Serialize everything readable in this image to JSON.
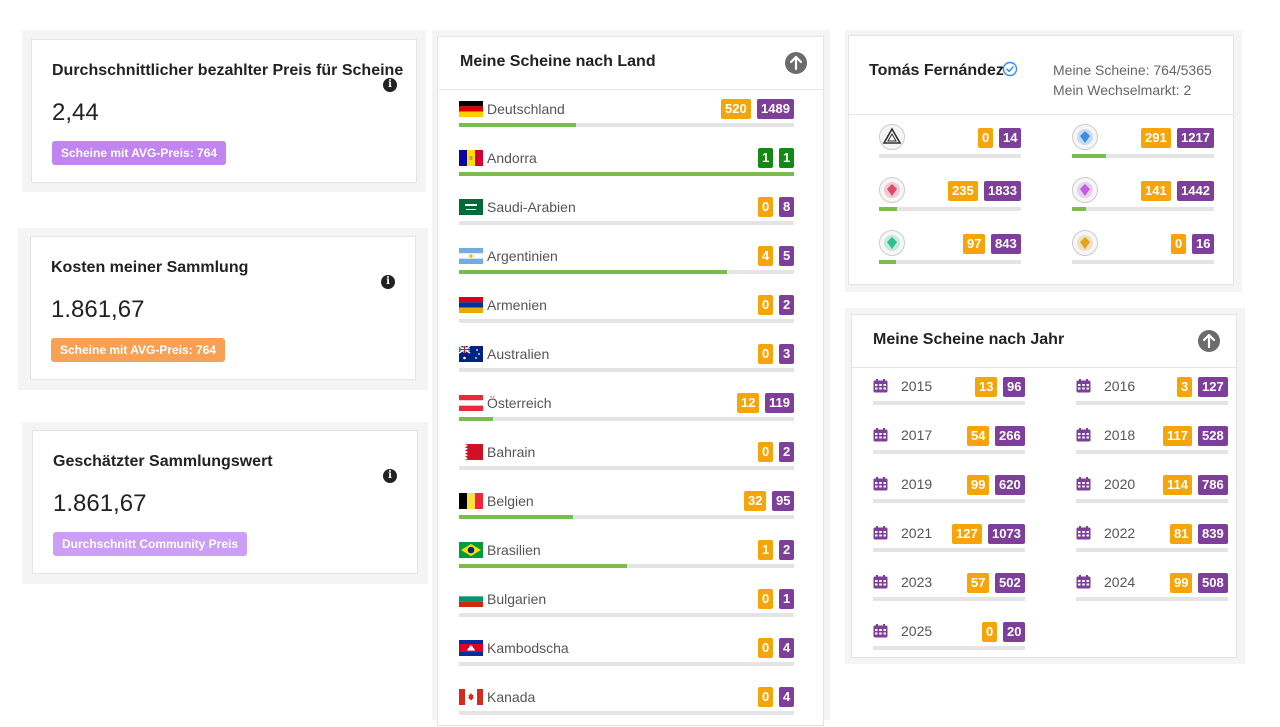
{
  "stats": [
    {
      "title": "Durchschnittlicher bezahlter Preis für Scheine",
      "value": "2,44",
      "badge": "Scheine mit AVG-Preis: 764",
      "badge_color": "#c184f0"
    },
    {
      "title": "Kosten meiner Sammlung",
      "value": "1.861,67",
      "badge": "Scheine mit AVG-Preis: 764",
      "badge_color": "#f8a155"
    },
    {
      "title": "Geschätzter Sammlungswert",
      "value": "1.861,67",
      "badge": "Durchschnitt Community Preis",
      "badge_color": "#cc9ef5"
    }
  ],
  "info_glyph": "i",
  "countries": {
    "title": "Meine Scheine nach Land",
    "items": [
      {
        "name": "Deutschland",
        "flag": "de",
        "owned": "520",
        "total": "1489",
        "progress": 0.35,
        "owned_color": "orange",
        "total_color": "purple"
      },
      {
        "name": "Andorra",
        "flag": "ad",
        "owned": "1",
        "total": "1",
        "progress": 1.0,
        "owned_color": "green",
        "total_color": "green"
      },
      {
        "name": "Saudi-Arabien",
        "flag": "sa",
        "owned": "0",
        "total": "8",
        "progress": 0,
        "owned_color": "orange",
        "total_color": "purple"
      },
      {
        "name": "Argentinien",
        "flag": "ar",
        "owned": "4",
        "total": "5",
        "progress": 0.8,
        "owned_color": "orange",
        "total_color": "purple"
      },
      {
        "name": "Armenien",
        "flag": "am",
        "owned": "0",
        "total": "2",
        "progress": 0,
        "owned_color": "orange",
        "total_color": "purple"
      },
      {
        "name": "Australien",
        "flag": "au",
        "owned": "0",
        "total": "3",
        "progress": 0,
        "owned_color": "orange",
        "total_color": "purple"
      },
      {
        "name": "Österreich",
        "flag": "at",
        "owned": "12",
        "total": "119",
        "progress": 0.1,
        "owned_color": "orange",
        "total_color": "purple"
      },
      {
        "name": "Bahrain",
        "flag": "bh",
        "owned": "0",
        "total": "2",
        "progress": 0,
        "owned_color": "orange",
        "total_color": "purple"
      },
      {
        "name": "Belgien",
        "flag": "be",
        "owned": "32",
        "total": "95",
        "progress": 0.34,
        "owned_color": "orange",
        "total_color": "purple"
      },
      {
        "name": "Brasilien",
        "flag": "br",
        "owned": "1",
        "total": "2",
        "progress": 0.5,
        "owned_color": "orange",
        "total_color": "purple"
      },
      {
        "name": "Bulgarien",
        "flag": "bg",
        "owned": "0",
        "total": "1",
        "progress": 0,
        "owned_color": "orange",
        "total_color": "purple"
      },
      {
        "name": "Kambodscha",
        "flag": "kh",
        "owned": "0",
        "total": "4",
        "progress": 0,
        "owned_color": "orange",
        "total_color": "purple"
      },
      {
        "name": "Kanada",
        "flag": "ca",
        "owned": "0",
        "total": "4",
        "progress": 0,
        "owned_color": "orange",
        "total_color": "purple"
      }
    ]
  },
  "user": {
    "name": "Tomás Fernández",
    "scheine": "Meine Scheine: 764/5365",
    "wechsel": "Mein Wechselmarkt: 2",
    "categories": [
      {
        "icon": "triangle-icon",
        "owned": "0",
        "total": "14",
        "progress": 0,
        "color": "#555555"
      },
      {
        "icon": "blue-gem-icon",
        "owned": "291",
        "total": "1217",
        "progress": 0.24,
        "color": "#3a8ee6"
      },
      {
        "icon": "red-gem-icon",
        "owned": "235",
        "total": "1833",
        "progress": 0.13,
        "color": "#e04a6a"
      },
      {
        "icon": "violet-gem-icon",
        "owned": "141",
        "total": "1442",
        "progress": 0.1,
        "color": "#c060e0"
      },
      {
        "icon": "green-gem-icon",
        "owned": "97",
        "total": "843",
        "progress": 0.12,
        "color": "#2fc08a"
      },
      {
        "icon": "gold-gem-icon",
        "owned": "0",
        "total": "16",
        "progress": 0,
        "color": "#e0a520"
      }
    ]
  },
  "years": {
    "title": "Meine Scheine nach Jahr",
    "items": [
      {
        "year": "2015",
        "owned": "13",
        "total": "96"
      },
      {
        "year": "2016",
        "owned": "3",
        "total": "127"
      },
      {
        "year": "2017",
        "owned": "54",
        "total": "266"
      },
      {
        "year": "2018",
        "owned": "117",
        "total": "528"
      },
      {
        "year": "2019",
        "owned": "99",
        "total": "620"
      },
      {
        "year": "2020",
        "owned": "114",
        "total": "786"
      },
      {
        "year": "2021",
        "owned": "127",
        "total": "1073"
      },
      {
        "year": "2022",
        "owned": "81",
        "total": "839"
      },
      {
        "year": "2023",
        "owned": "57",
        "total": "502"
      },
      {
        "year": "2024",
        "owned": "99",
        "total": "508"
      },
      {
        "year": "2025",
        "owned": "0",
        "total": "20"
      }
    ]
  }
}
